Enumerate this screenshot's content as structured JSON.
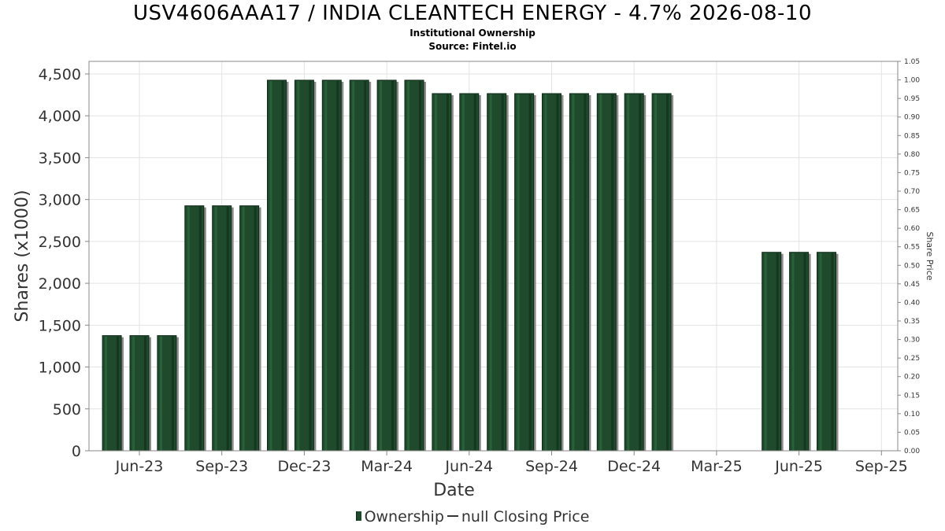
{
  "header": {
    "title": "USV4606AAA17 / INDIA CLEANTECH ENERGY - 4.7% 2026-08-10",
    "subtitle": "Institutional Ownership",
    "source": "Source: Fintel.io"
  },
  "legend": {
    "ownership_label": "Ownership",
    "price_label": "null Closing Price"
  },
  "colors": {
    "bar": "#1f4a2c",
    "bar_dark": "#0f2a18",
    "bar_shadow": "#8c8c8c",
    "grid": "#e3e3e3",
    "axis": "#888888"
  },
  "chart_data": {
    "type": "bar",
    "xlabel": "Date",
    "ylabel": "Shares (x1000)",
    "y2label": "Share Price",
    "ylim": [
      0,
      4650
    ],
    "y2lim": [
      0,
      1.05
    ],
    "xticks": [
      "Jun-23",
      "Sep-23",
      "Dec-23",
      "Mar-24",
      "Jun-24",
      "Sep-24",
      "Dec-24",
      "Mar-25",
      "Jun-25",
      "Sep-25"
    ],
    "yticks": [
      "0",
      "500",
      "1,000",
      "1,500",
      "2,000",
      "2,500",
      "3,000",
      "3,500",
      "4,000",
      "4,500"
    ],
    "y2ticks": [
      "0.00",
      "0.05",
      "0.10",
      "0.15",
      "0.20",
      "0.25",
      "0.30",
      "0.35",
      "0.40",
      "0.45",
      "0.50",
      "0.55",
      "0.60",
      "0.65",
      "0.70",
      "0.75",
      "0.80",
      "0.85",
      "0.90",
      "0.95",
      "1.00",
      "1.05"
    ],
    "grid": true,
    "legend_position": "bottom",
    "series": [
      {
        "name": "Ownership",
        "points": [
          {
            "t": "2023-05",
            "value": 1375
          },
          {
            "t": "2023-06",
            "value": 1375
          },
          {
            "t": "2023-07",
            "value": 1375
          },
          {
            "t": "2023-08",
            "value": 2925
          },
          {
            "t": "2023-09",
            "value": 2925
          },
          {
            "t": "2023-10",
            "value": 2925
          },
          {
            "t": "2023-11",
            "value": 4425
          },
          {
            "t": "2023-12",
            "value": 4425
          },
          {
            "t": "2024-01",
            "value": 4425
          },
          {
            "t": "2024-02",
            "value": 4425
          },
          {
            "t": "2024-03",
            "value": 4425
          },
          {
            "t": "2024-04",
            "value": 4425
          },
          {
            "t": "2024-05",
            "value": 4265
          },
          {
            "t": "2024-06",
            "value": 4265
          },
          {
            "t": "2024-07",
            "value": 4265
          },
          {
            "t": "2024-08",
            "value": 4265
          },
          {
            "t": "2024-09",
            "value": 4265
          },
          {
            "t": "2024-10",
            "value": 4265
          },
          {
            "t": "2024-11",
            "value": 4265
          },
          {
            "t": "2024-12",
            "value": 4265
          },
          {
            "t": "2025-01",
            "value": 4265
          },
          {
            "t": "2025-05",
            "value": 2370
          },
          {
            "t": "2025-06",
            "value": 2370
          },
          {
            "t": "2025-07",
            "value": 2370
          }
        ]
      },
      {
        "name": "null Closing Price",
        "points": []
      }
    ]
  }
}
